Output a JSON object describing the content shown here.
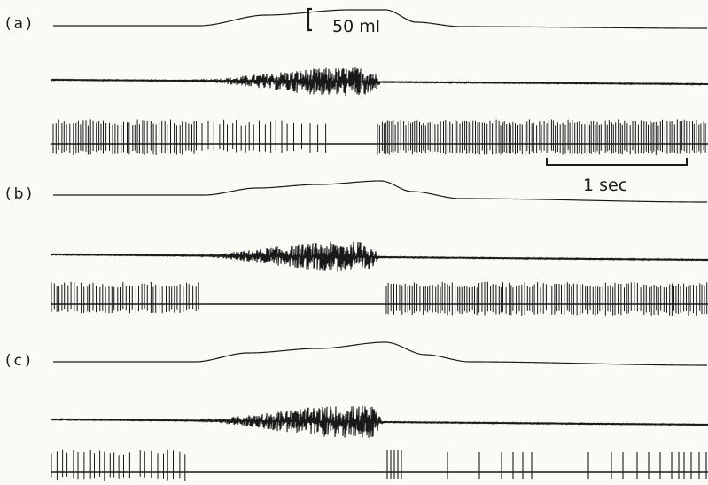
{
  "panels": [
    {
      "label": "(a)"
    },
    {
      "label": "(b)"
    },
    {
      "label": "(c)"
    }
  ],
  "scale_bars": {
    "volume": "50 ml",
    "time": "1 sec"
  },
  "colors": {
    "trace": "#1a1a1a",
    "background": "#fbfaf6"
  }
}
